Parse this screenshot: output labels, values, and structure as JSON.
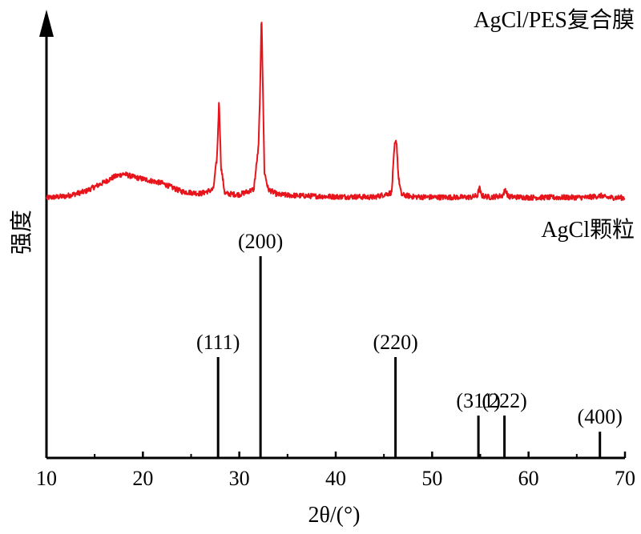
{
  "chart_data": {
    "type": "line",
    "xlabel": "2θ/(°)",
    "ylabel": "强度",
    "xlim": [
      10,
      70
    ],
    "x_ticks": [
      10,
      20,
      30,
      40,
      50,
      60,
      70
    ],
    "series": [
      {
        "name": "AgCl/PES复合膜",
        "color": "#e8141b",
        "x": [
          10,
          12,
          14,
          16,
          17,
          18,
          19,
          20,
          21,
          22,
          24,
          26,
          27.3,
          27.7,
          27.9,
          28.1,
          28.5,
          30,
          31.5,
          32.0,
          32.2,
          32.3,
          32.4,
          32.6,
          33.0,
          34,
          36,
          38,
          40,
          42,
          44,
          45.8,
          46.1,
          46.3,
          46.5,
          46.8,
          48,
          50,
          52,
          54,
          54.7,
          54.9,
          55.1,
          56,
          57.3,
          57.6,
          57.9,
          60,
          62,
          64,
          66,
          67.6,
          68,
          70
        ],
        "intensity": [
          0,
          1.5,
          6,
          15,
          20,
          23,
          20,
          18,
          16,
          14,
          6,
          4,
          8,
          40,
          95,
          30,
          4,
          3,
          8,
          50,
          120,
          180,
          130,
          25,
          8,
          3,
          2,
          1.5,
          1,
          1,
          0.5,
          5,
          50,
          55,
          20,
          3,
          1,
          0.5,
          0.5,
          0.5,
          2,
          10,
          2,
          0.5,
          2,
          8,
          1,
          0.3,
          0.3,
          0.3,
          0.3,
          2,
          0.3,
          0
        ]
      },
      {
        "name": "AgCl颗粒",
        "color": "#000000",
        "type": "stick",
        "peaks": [
          {
            "x": 27.8,
            "label": "(111)",
            "intensity": 50
          },
          {
            "x": 32.2,
            "label": "(200)",
            "intensity": 100
          },
          {
            "x": 46.2,
            "label": "(220)",
            "intensity": 50
          },
          {
            "x": 54.8,
            "label": "(311)",
            "intensity": 21
          },
          {
            "x": 57.5,
            "label": "(222)",
            "intensity": 21
          },
          {
            "x": 67.4,
            "label": "(400)",
            "intensity": 13
          }
        ]
      }
    ],
    "grid": false,
    "legend": "none"
  }
}
